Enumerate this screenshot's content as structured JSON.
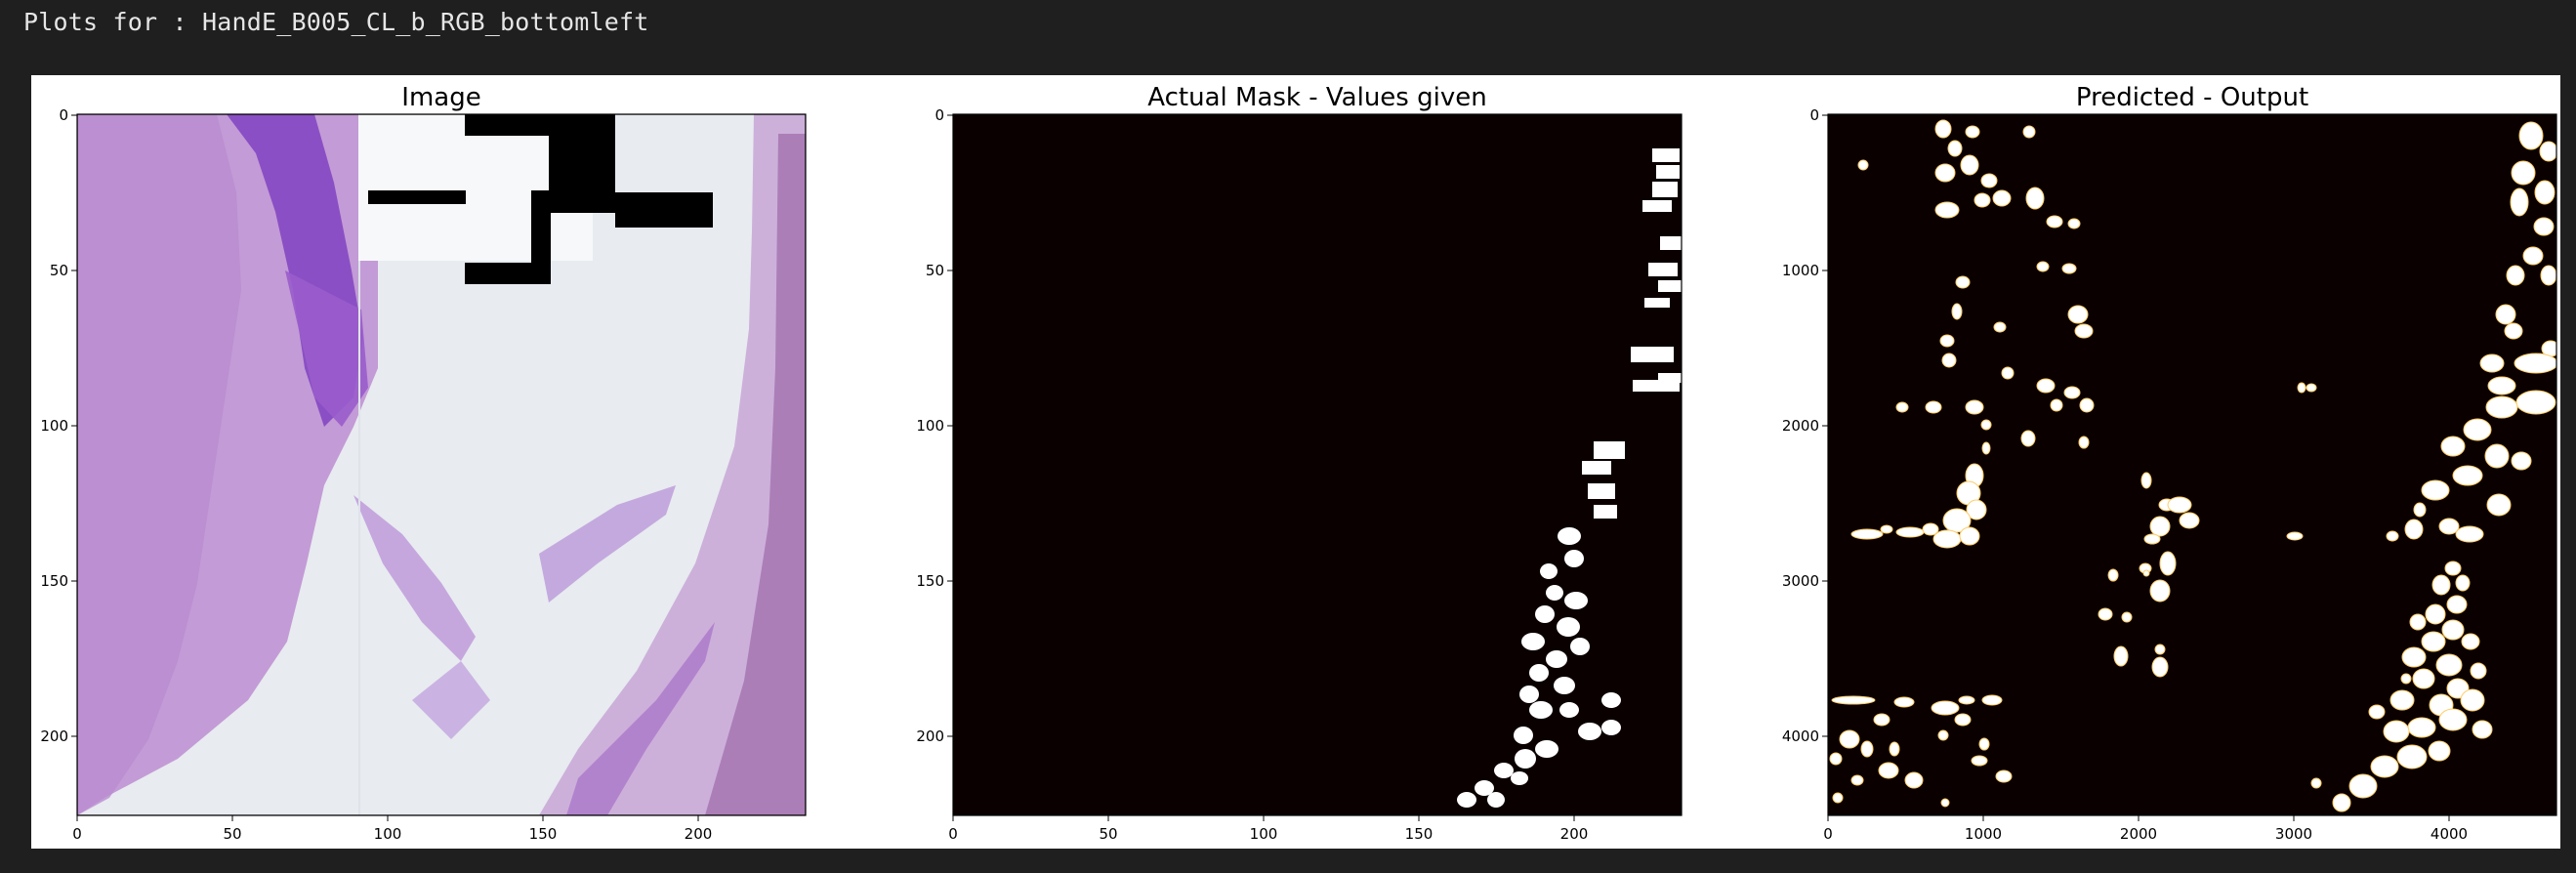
{
  "header": {
    "text": "Plots for : HandE_B005_CL_b_RGB_bottomleft"
  },
  "colors": {
    "mask_bg": "#0b0000",
    "blob": "#ffffff",
    "tissue_light": "#c9a2d8",
    "tissue_dark": "#8c52c2",
    "background_stain": "#e9ecf1"
  },
  "chart_data": [
    {
      "type": "image",
      "title": "Image",
      "xlim": [
        0,
        235
      ],
      "ylim": [
        225,
        0
      ],
      "xticks": [
        "0",
        "50",
        "100",
        "150",
        "200"
      ],
      "yticks": [
        "0",
        "50",
        "100",
        "150",
        "200"
      ],
      "content": "H&E stained tissue RGB tile"
    },
    {
      "type": "heatmap",
      "title": "Actual Mask - Values given",
      "xlim": [
        0,
        235
      ],
      "ylim": [
        225,
        0
      ],
      "xticks": [
        "0",
        "50",
        "100",
        "150",
        "200"
      ],
      "yticks": [
        "0",
        "50",
        "100",
        "150",
        "200"
      ],
      "content": "binary mask"
    },
    {
      "type": "heatmap",
      "title": "Predicted - Output",
      "xlim": [
        0,
        4700
      ],
      "ylim": [
        4500,
        0
      ],
      "xticks": [
        "0",
        "1000",
        "2000",
        "3000",
        "4000"
      ],
      "yticks": [
        "0",
        "1000",
        "2000",
        "3000",
        "4000"
      ],
      "content": "predicted segmentation output"
    }
  ]
}
